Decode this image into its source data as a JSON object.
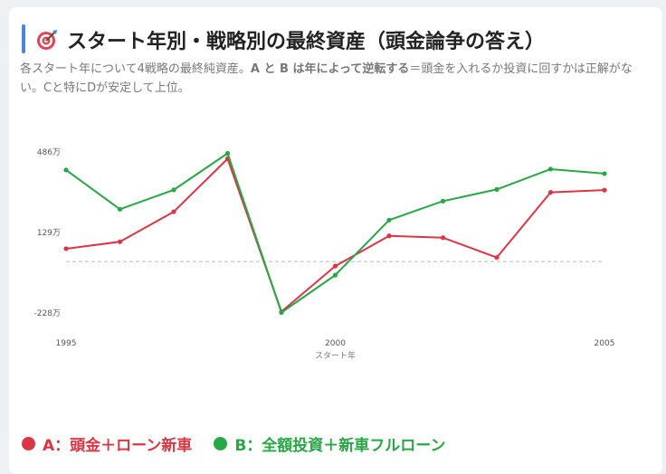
{
  "header": {
    "title": "スタート年別・戦略別の最終資産（頭金論争の答え）",
    "icon": "target-icon",
    "subtitle_pre": "各スタート年について4戦略の最終純資産。",
    "subtitle_bold": "A と B は年によって逆転する",
    "subtitle_post": "＝頭金を入れるか投資に回すかは正解がない。Cと特にDが安定して上位。"
  },
  "chart_data": {
    "type": "line",
    "title": "",
    "xlabel": "スタート年",
    "ylabel": "",
    "x": [
      1995,
      1996,
      1997,
      1998,
      1999,
      2000,
      2001,
      2002,
      2003,
      2004,
      2005
    ],
    "x_tick_labels": [
      "1995",
      "2000",
      "2005"
    ],
    "y_tick_labels": [
      "486万",
      "129万",
      "-228万"
    ],
    "y_ticks": [
      486,
      129,
      -228
    ],
    "ylim": [
      -228,
      486
    ],
    "zero_line": true,
    "grid": false,
    "legend_position": "bottom",
    "series": [
      {
        "name": "A：頭金＋ローン新車",
        "color": "#dc3545",
        "values": [
          57,
          88,
          221,
          456,
          -222,
          -20,
          114,
          106,
          18,
          307,
          317
        ]
      },
      {
        "name": "B：全額投資＋新車フルローン",
        "color": "#28a745",
        "values": [
          406,
          232,
          318,
          480,
          -226,
          -60,
          184,
          268,
          320,
          410,
          390
        ]
      }
    ]
  }
}
